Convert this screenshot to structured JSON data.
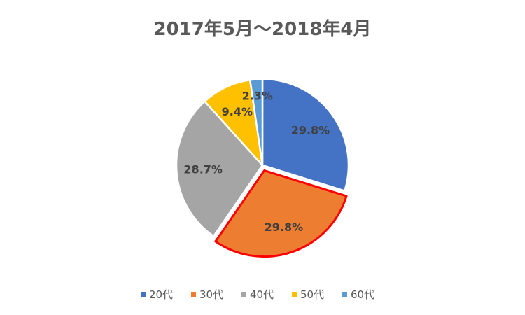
{
  "chart_data": {
    "type": "pie",
    "title": "2017年5月～2018年4月",
    "categories": [
      "20代",
      "30代",
      "40代",
      "50代",
      "60代"
    ],
    "values": [
      29.8,
      29.8,
      28.7,
      9.4,
      2.3
    ],
    "labels": [
      "29.8%",
      "29.8%",
      "28.7%",
      "9.4%",
      "2.3%"
    ],
    "colors": [
      "#4472C4",
      "#ED7D31",
      "#A5A5A5",
      "#FFC000",
      "#5B9BD5"
    ],
    "highlighted_slice": "30代",
    "highlight_color": "#FF0000",
    "exploded_slice": "30代",
    "legend_position": "bottom",
    "start_angle_deg": 0,
    "direction": "clockwise"
  }
}
